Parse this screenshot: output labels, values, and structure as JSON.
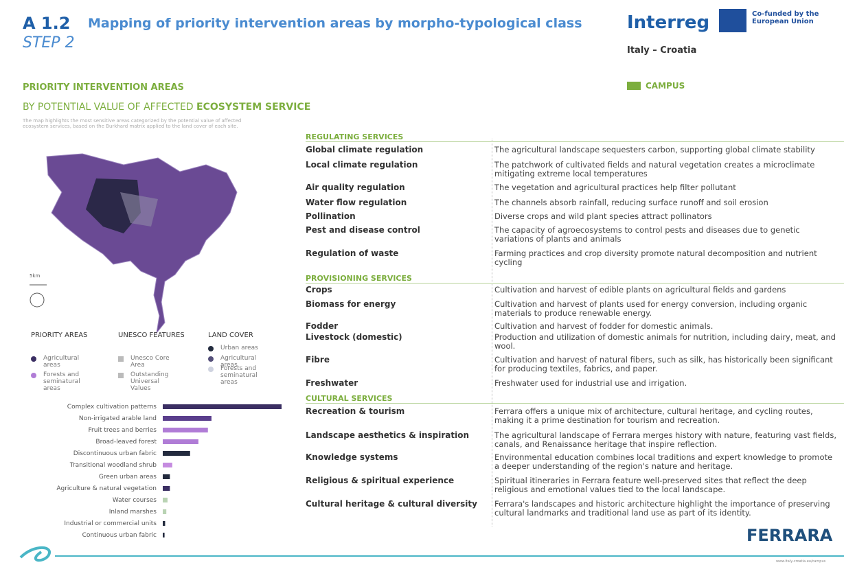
{
  "header": {
    "code": "A 1.2",
    "title": "Mapping of priority intervention areas by morpho-typological class",
    "step": "STEP 2"
  },
  "logos": {
    "interreg": "Interreg",
    "cofunded": "Co-funded by the European Union",
    "programme": "Italy – Croatia",
    "campus": "CAMPUS"
  },
  "section": {
    "title": "PRIORITY INTERVENTION AREAS",
    "subtitle_prefix": "BY POTENTIAL VALUE OF AFFECTED",
    "subtitle_emphasis": "ECOSYSTEM SERVICE",
    "intro": "The map highlights the most sensitive areas categorized by the potential value of affected ecosystem services, based on the Burkhard matrix applied to the land cover of each site."
  },
  "scale": "5km",
  "legend": [
    {
      "title": "PRIORITY AREAS",
      "items": [
        {
          "label": "Agricultural areas",
          "color": "#3b2f63"
        },
        {
          "label": "Forests and seminatural areas",
          "color": "#b07cd6"
        }
      ]
    },
    {
      "title": "UNESCO FEATURES",
      "items": [
        {
          "label": "Unesco Core Area",
          "color": "#bbbbbb"
        },
        {
          "label": "Outstanding Universal Values",
          "color": "#bbbbbb"
        }
      ]
    },
    {
      "title": "LAND COVER",
      "items": [
        {
          "label": "Urban areas",
          "color": "#232b3e"
        },
        {
          "label": "Agricultural areas",
          "color": "#55507a"
        },
        {
          "label": "Forests and seminatural areas",
          "color": "#cfd3e0"
        }
      ]
    }
  ],
  "services": [
    {
      "heading": "REGULATING SERVICES",
      "rows": [
        {
          "name": "Global climate regulation",
          "text": "The agricultural landscape sequesters carbon, supporting global climate stability"
        },
        {
          "name": "Local climate regulation",
          "text": "The patchwork of cultivated fields and natural vegetation creates a microclimate mitigating extreme local temperatures"
        },
        {
          "name": "Air quality regulation",
          "text": "The vegetation and agricultural practices help filter pollutant"
        },
        {
          "name": "Water flow regulation",
          "text": "The channels absorb rainfall, reducing surface runoff and soil erosion"
        },
        {
          "name": "Pollination",
          "text": "Diverse crops and wild plant species attract pollinators"
        },
        {
          "name": "Pest and disease control",
          "text": "The capacity of agroecosystems to control pests and diseases due to genetic variations of plants and animals"
        },
        {
          "name": "Regulation of waste",
          "text": "Farming practices and crop diversity promote natural decomposition and nutrient cycling"
        }
      ]
    },
    {
      "heading": "PROVISIONING SERVICES",
      "rows": [
        {
          "name": "Crops",
          "text": "Cultivation and harvest of edible plants on agricultural fields and gardens"
        },
        {
          "name": "Biomass for energy",
          "text": "Cultivation and harvest of plants used for energy conversion, including organic materials to produce renewable energy."
        },
        {
          "name": "Fodder",
          "text": "Cultivation and harvest of fodder for domestic animals."
        },
        {
          "name": "Livestock (domestic)",
          "text": "Production and utilization of domestic animals for nutrition, including dairy, meat, and wool."
        },
        {
          "name": "Fibre",
          "text": "Cultivation and harvest of natural fibers, such as silk, has historically been significant for producing textiles, fabrics, and paper."
        },
        {
          "name": "Freshwater",
          "text": "Freshwater used for industrial use and irrigation."
        }
      ]
    },
    {
      "heading": "CULTURAL SERVICES",
      "rows": [
        {
          "name": "Recreation & tourism",
          "text": "Ferrara offers a unique mix of architecture, cultural heritage, and cycling routes, making it a prime destination for tourism and recreation."
        },
        {
          "name": "Landscape aesthetics & inspiration",
          "text": "The agricultural landscape of Ferrara merges history with nature, featuring vast fields, canals, and Renaissance heritage that inspire reflection."
        },
        {
          "name": "Knowledge systems",
          "text": "Environmental education combines local traditions and expert knowledge to promote a deeper understanding of the region's nature and heritage."
        },
        {
          "name": "Religious & spiritual experience",
          "text": "Spiritual itineraries in Ferrara feature well-preserved sites that reflect the deep religious and emotional values tied to the local landscape."
        },
        {
          "name": "Cultural heritage & cultural diversity",
          "text": "Ferrara's landscapes and historic architecture highlight the importance of preserving cultural landmarks and traditional land use as part of its identity."
        }
      ]
    }
  ],
  "land_cover_chart": {
    "type": "bar",
    "categories": [
      "Complex cultivation patterns",
      "Non-irrigated arable land",
      "Fruit trees and berries",
      "Broad-leaved forest",
      "Discontinuous urban fabric",
      "Transitional woodland shrub",
      "Green urban areas",
      "Agriculture & natural vegetation",
      "Water courses",
      "Inland marshes",
      "Industrial or commercial units",
      "Continuous urban fabric"
    ],
    "values": [
      100,
      41,
      38,
      30,
      23,
      8,
      6,
      6,
      4,
      3,
      2,
      1.5
    ],
    "colors": [
      "#3b2f63",
      "#5a3e8c",
      "#b07cd6",
      "#b07cd6",
      "#232b3e",
      "#c58be0",
      "#232b3e",
      "#3b2f63",
      "#b9d3b3",
      "#b9d3b3",
      "#232b3e",
      "#232b3e"
    ]
  },
  "footer": {
    "city": "FERRARA",
    "url": "www.italy-croatia.eu/campus"
  }
}
